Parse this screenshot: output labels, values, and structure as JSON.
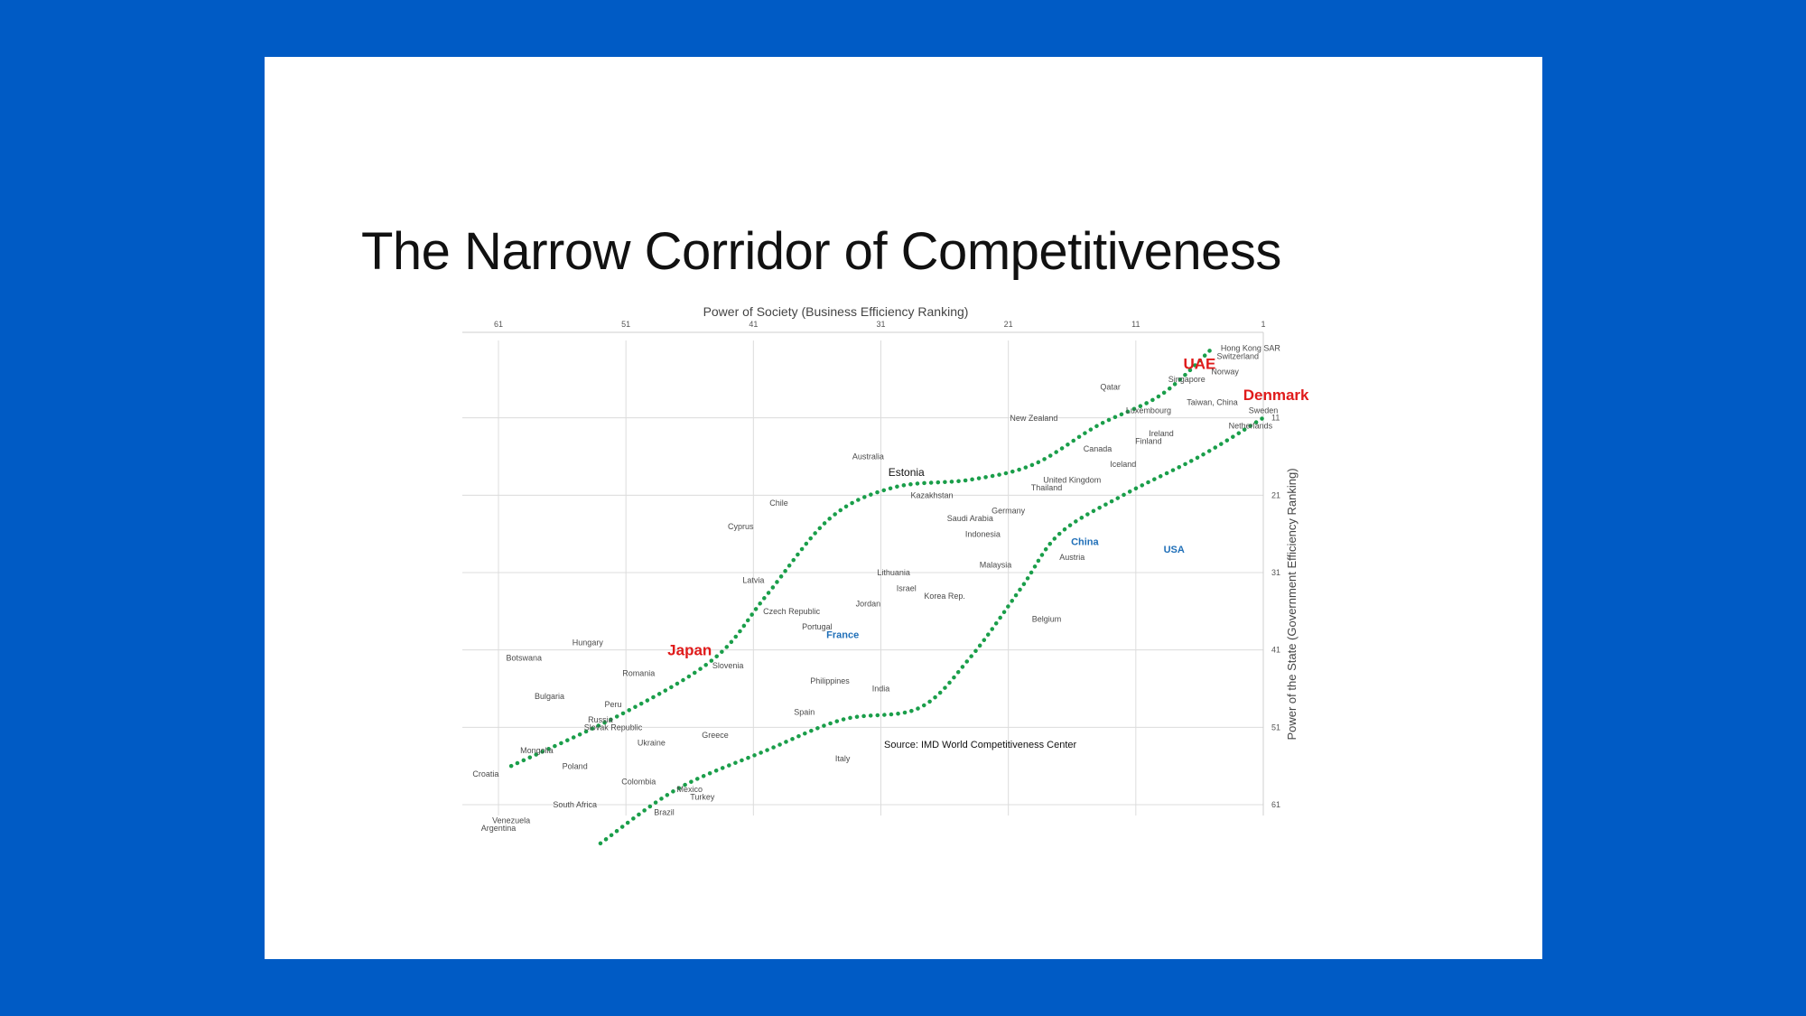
{
  "slide": {
    "title": "The Narrow Corridor of Competitiveness"
  },
  "chart_data": {
    "type": "scatter",
    "xlabel": "Power of Society (Business Efficiency Ranking)",
    "ylabel": "Power of the State (Government Efficiency Ranking)",
    "xlim": [
      64,
      1
    ],
    "ylim": [
      1,
      64
    ],
    "x_reversed": true,
    "y_reversed": true,
    "x_ticks": [
      61,
      51,
      41,
      31,
      21,
      11,
      1
    ],
    "y_ticks": [
      11,
      21,
      31,
      41,
      51,
      61
    ],
    "x_axis_position": "top",
    "y_axis_position": "right",
    "grid": true,
    "source": "Source: IMD World Competitiveness Center",
    "points": [
      {
        "label": "Hong Kong SAR",
        "x": 2,
        "y": 2
      },
      {
        "label": "Switzerland",
        "x": 3,
        "y": 3
      },
      {
        "label": "UAE",
        "x": 6,
        "y": 4,
        "highlight": "red"
      },
      {
        "label": "Norway",
        "x": 4,
        "y": 5
      },
      {
        "label": "Singapore",
        "x": 7,
        "y": 6
      },
      {
        "label": "Qatar",
        "x": 13,
        "y": 7
      },
      {
        "label": "Denmark",
        "x": 0,
        "y": 8,
        "highlight": "red"
      },
      {
        "label": "Taiwan, China",
        "x": 5,
        "y": 9
      },
      {
        "label": "Sweden",
        "x": 1,
        "y": 10
      },
      {
        "label": "Luxembourg",
        "x": 10,
        "y": 10
      },
      {
        "label": "New Zealand",
        "x": 19,
        "y": 11
      },
      {
        "label": "Netherlands",
        "x": 2,
        "y": 12
      },
      {
        "label": "Ireland",
        "x": 9,
        "y": 13
      },
      {
        "label": "Finland",
        "x": 10,
        "y": 14
      },
      {
        "label": "Canada",
        "x": 14,
        "y": 15
      },
      {
        "label": "Iceland",
        "x": 12,
        "y": 17
      },
      {
        "label": "Australia",
        "x": 32,
        "y": 16
      },
      {
        "label": "Estonia",
        "x": 29,
        "y": 18,
        "highlight": "black"
      },
      {
        "label": "United Kingdom",
        "x": 16,
        "y": 19
      },
      {
        "label": "Thailand",
        "x": 18,
        "y": 20
      },
      {
        "label": "Kazakhstan",
        "x": 27,
        "y": 21
      },
      {
        "label": "Chile",
        "x": 39,
        "y": 22
      },
      {
        "label": "Germany",
        "x": 21,
        "y": 23
      },
      {
        "label": "Saudi Arabia",
        "x": 24,
        "y": 24
      },
      {
        "label": "Cyprus",
        "x": 42,
        "y": 25
      },
      {
        "label": "Indonesia",
        "x": 23,
        "y": 26
      },
      {
        "label": "China",
        "x": 15,
        "y": 27,
        "highlight": "blue"
      },
      {
        "label": "USA",
        "x": 8,
        "y": 28,
        "highlight": "blue"
      },
      {
        "label": "Austria",
        "x": 16,
        "y": 29
      },
      {
        "label": "Malaysia",
        "x": 22,
        "y": 30
      },
      {
        "label": "Lithuania",
        "x": 30,
        "y": 31
      },
      {
        "label": "Latvia",
        "x": 41,
        "y": 32
      },
      {
        "label": "Israel",
        "x": 29,
        "y": 33
      },
      {
        "label": "Korea Rep.",
        "x": 26,
        "y": 34
      },
      {
        "label": "Jordan",
        "x": 32,
        "y": 35
      },
      {
        "label": "Czech Republic",
        "x": 38,
        "y": 36
      },
      {
        "label": "Belgium",
        "x": 18,
        "y": 37
      },
      {
        "label": "Portugal",
        "x": 36,
        "y": 38
      },
      {
        "label": "France",
        "x": 34,
        "y": 39,
        "highlight": "blue"
      },
      {
        "label": "Hungary",
        "x": 54,
        "y": 40
      },
      {
        "label": "Japan",
        "x": 46,
        "y": 41,
        "highlight": "red"
      },
      {
        "label": "Botswana",
        "x": 59,
        "y": 42
      },
      {
        "label": "Slovenia",
        "x": 43,
        "y": 43
      },
      {
        "label": "Romania",
        "x": 50,
        "y": 44
      },
      {
        "label": "Philippines",
        "x": 35,
        "y": 45
      },
      {
        "label": "India",
        "x": 31,
        "y": 46
      },
      {
        "label": "Bulgaria",
        "x": 57,
        "y": 47
      },
      {
        "label": "Peru",
        "x": 52,
        "y": 48
      },
      {
        "label": "Spain",
        "x": 37,
        "y": 49
      },
      {
        "label": "Russia",
        "x": 53,
        "y": 50
      },
      {
        "label": "Slovak Republic",
        "x": 52,
        "y": 51
      },
      {
        "label": "Greece",
        "x": 44,
        "y": 52
      },
      {
        "label": "Ukraine",
        "x": 49,
        "y": 53
      },
      {
        "label": "Mongolia",
        "x": 58,
        "y": 54
      },
      {
        "label": "Italy",
        "x": 34,
        "y": 55
      },
      {
        "label": "Poland",
        "x": 55,
        "y": 56
      },
      {
        "label": "Croatia",
        "x": 62,
        "y": 57
      },
      {
        "label": "Colombia",
        "x": 50,
        "y": 58
      },
      {
        "label": "Mexico",
        "x": 46,
        "y": 59
      },
      {
        "label": "Turkey",
        "x": 45,
        "y": 60
      },
      {
        "label": "South Africa",
        "x": 55,
        "y": 61
      },
      {
        "label": "Brazil",
        "x": 48,
        "y": 62
      },
      {
        "label": "Venezuela",
        "x": 60,
        "y": 63
      },
      {
        "label": "Argentina",
        "x": 61,
        "y": 64
      }
    ],
    "corridor_lines": [
      {
        "color": "#1a9e4a",
        "style": "dotted",
        "points": [
          [
            60,
            56
          ],
          [
            51,
            49
          ],
          [
            44,
            42
          ],
          [
            40,
            34
          ],
          [
            35,
            24
          ],
          [
            30,
            20
          ],
          [
            24,
            19
          ],
          [
            19,
            17
          ],
          [
            14,
            12
          ],
          [
            9,
            8
          ],
          [
            5,
            2
          ]
        ]
      },
      {
        "color": "#1a9e4a",
        "style": "dotted",
        "points": [
          [
            53,
            66
          ],
          [
            47,
            59
          ],
          [
            40,
            54
          ],
          [
            34,
            50
          ],
          [
            28,
            48.5
          ],
          [
            24,
            42
          ],
          [
            20,
            33
          ],
          [
            17,
            26
          ],
          [
            12,
            21
          ],
          [
            6,
            16
          ],
          [
            1,
            11
          ]
        ]
      }
    ]
  }
}
